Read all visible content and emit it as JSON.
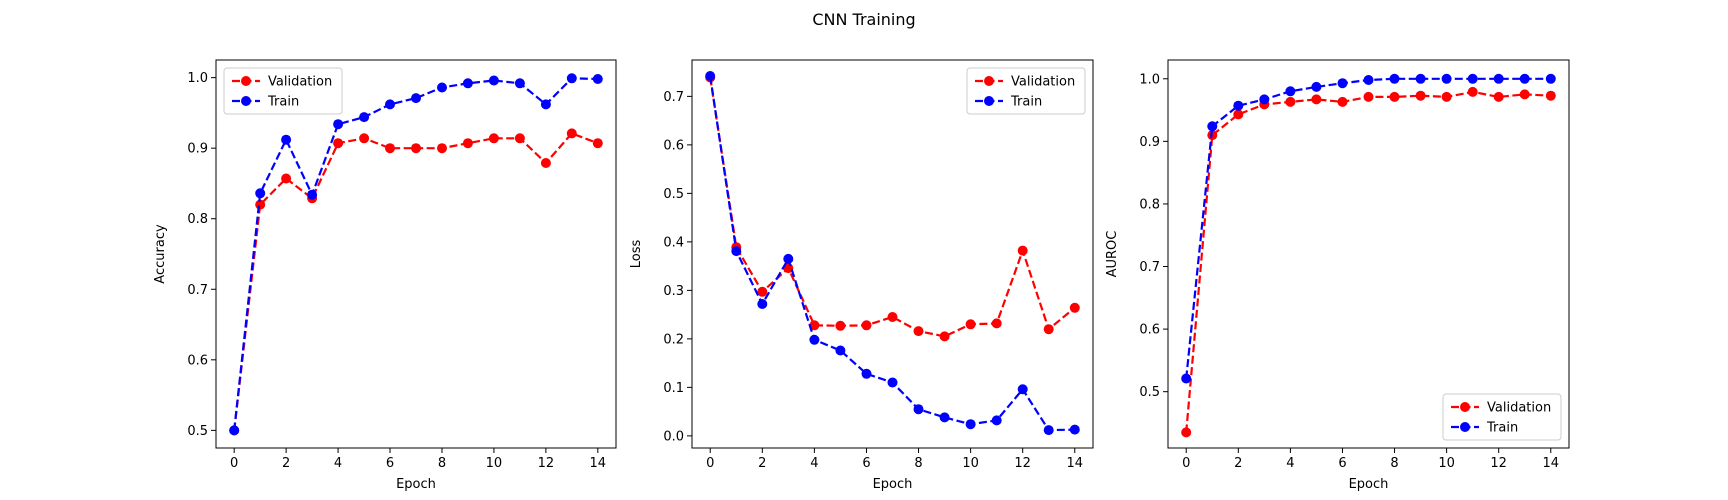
{
  "figure": {
    "title": "CNN Training"
  },
  "colors": {
    "validation": "#ff0000",
    "train": "#0000ff",
    "frame": "#000000",
    "background": "#ffffff"
  },
  "chart_data": [
    {
      "type": "line",
      "xlabel": "Epoch",
      "ylabel": "Accuracy",
      "xlim": [
        -0.7,
        14.7
      ],
      "ylim": [
        0.475,
        1.025
      ],
      "xticks": [
        0,
        2,
        4,
        6,
        8,
        10,
        12,
        14
      ],
      "yticks": [
        0.5,
        0.6,
        0.7,
        0.8,
        0.9,
        1.0
      ],
      "ytick_labels": [
        "0.5",
        "0.6",
        "0.7",
        "0.8",
        "0.9",
        "1.0"
      ],
      "grid": false,
      "legend": {
        "position": "upper-left",
        "entries": [
          "Validation",
          "Train"
        ]
      },
      "x": [
        0,
        1,
        2,
        3,
        4,
        5,
        6,
        7,
        8,
        9,
        10,
        11,
        12,
        13,
        14
      ],
      "series": [
        {
          "name": "Validation",
          "color": "#ff0000",
          "marker": "circle",
          "linestyle": "dashed",
          "values": [
            0.5,
            0.82,
            0.857,
            0.829,
            0.907,
            0.914,
            0.9,
            0.9,
            0.9,
            0.907,
            0.914,
            0.914,
            0.879,
            0.921,
            0.907
          ]
        },
        {
          "name": "Train",
          "color": "#0000ff",
          "marker": "circle",
          "linestyle": "dashed",
          "values": [
            0.5,
            0.836,
            0.912,
            0.834,
            0.934,
            0.944,
            0.962,
            0.971,
            0.986,
            0.992,
            0.996,
            0.992,
            0.962,
            0.999,
            0.998
          ]
        }
      ]
    },
    {
      "type": "line",
      "xlabel": "Epoch",
      "ylabel": "Loss",
      "xlim": [
        -0.7,
        14.7
      ],
      "ylim": [
        -0.025,
        0.775
      ],
      "xticks": [
        0,
        2,
        4,
        6,
        8,
        10,
        12,
        14
      ],
      "yticks": [
        0.0,
        0.1,
        0.2,
        0.3,
        0.4,
        0.5,
        0.6,
        0.7
      ],
      "ytick_labels": [
        "0.0",
        "0.1",
        "0.2",
        "0.3",
        "0.4",
        "0.5",
        "0.6",
        "0.7"
      ],
      "grid": false,
      "legend": {
        "position": "upper-right",
        "entries": [
          "Validation",
          "Train"
        ]
      },
      "x": [
        0,
        1,
        2,
        3,
        4,
        5,
        6,
        7,
        8,
        9,
        10,
        11,
        12,
        13,
        14
      ],
      "series": [
        {
          "name": "Validation",
          "color": "#ff0000",
          "marker": "circle",
          "linestyle": "dashed",
          "values": [
            0.739,
            0.389,
            0.297,
            0.346,
            0.228,
            0.227,
            0.228,
            0.245,
            0.216,
            0.205,
            0.23,
            0.232,
            0.382,
            0.22,
            0.264
          ]
        },
        {
          "name": "Train",
          "color": "#0000ff",
          "marker": "circle",
          "linestyle": "dashed",
          "values": [
            0.742,
            0.381,
            0.272,
            0.365,
            0.198,
            0.176,
            0.128,
            0.11,
            0.055,
            0.038,
            0.024,
            0.032,
            0.096,
            0.012,
            0.013
          ]
        }
      ]
    },
    {
      "type": "line",
      "xlabel": "Epoch",
      "ylabel": "AUROC",
      "xlim": [
        -0.7,
        14.7
      ],
      "ylim": [
        0.41,
        1.03
      ],
      "xticks": [
        0,
        2,
        4,
        6,
        8,
        10,
        12,
        14
      ],
      "yticks": [
        0.5,
        0.6,
        0.7,
        0.8,
        0.9,
        1.0
      ],
      "ytick_labels": [
        "0.5",
        "0.6",
        "0.7",
        "0.8",
        "0.9",
        "1.0"
      ],
      "grid": false,
      "legend": {
        "position": "lower-right",
        "entries": [
          "Validation",
          "Train"
        ]
      },
      "x": [
        0,
        1,
        2,
        3,
        4,
        5,
        6,
        7,
        8,
        9,
        10,
        11,
        12,
        13,
        14
      ],
      "series": [
        {
          "name": "Validation",
          "color": "#ff0000",
          "marker": "circle",
          "linestyle": "dashed",
          "values": [
            0.435,
            0.91,
            0.943,
            0.959,
            0.963,
            0.967,
            0.963,
            0.971,
            0.971,
            0.973,
            0.971,
            0.979,
            0.971,
            0.975,
            0.973
          ]
        },
        {
          "name": "Train",
          "color": "#0000ff",
          "marker": "circle",
          "linestyle": "dashed",
          "values": [
            0.521,
            0.924,
            0.957,
            0.967,
            0.98,
            0.987,
            0.993,
            0.998,
            1.0,
            1.0,
            1.0,
            1.0,
            1.0,
            1.0,
            1.0
          ]
        }
      ]
    }
  ]
}
